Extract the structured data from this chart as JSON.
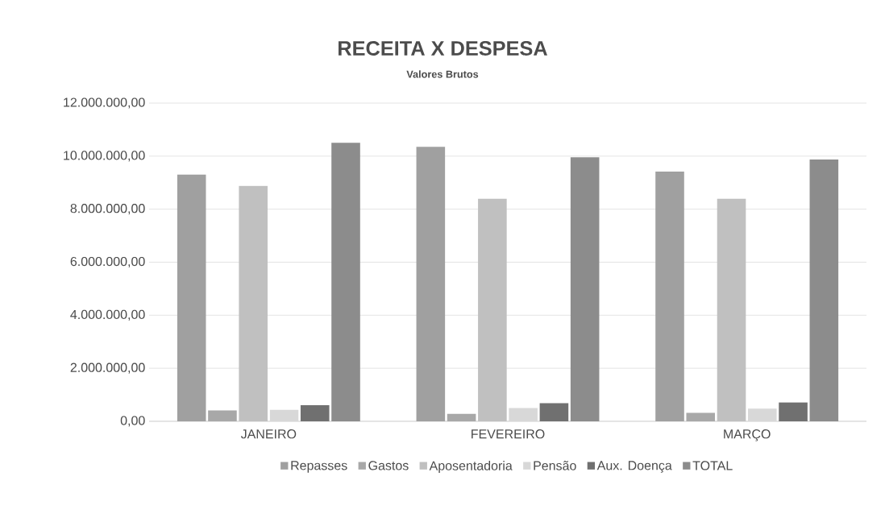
{
  "chart_data": {
    "type": "bar",
    "title": "RECEITA X DESPESA",
    "subtitle": "Valores Brutos",
    "categories": [
      "JANEIRO",
      "FEVEREIRO",
      "MARÇO"
    ],
    "series": [
      {
        "name": "Repasses",
        "color": "#a0a0a0",
        "values": [
          9300000,
          10350000,
          9420000
        ]
      },
      {
        "name": "Gastos",
        "color": "#a8a8a8",
        "values": [
          410000,
          280000,
          320000
        ]
      },
      {
        "name": "Aposentadoria",
        "color": "#c0c0c0",
        "values": [
          8880000,
          8390000,
          8390000
        ]
      },
      {
        "name": "Pensão",
        "color": "#d8d8d8",
        "values": [
          430000,
          500000,
          480000
        ]
      },
      {
        "name": "Aux. Doença",
        "color": "#707070",
        "values": [
          610000,
          680000,
          710000
        ]
      },
      {
        "name": "TOTAL",
        "color": "#8c8c8c",
        "values": [
          10500000,
          9960000,
          9870000
        ]
      }
    ],
    "ylim": [
      0,
      12000000
    ],
    "yticks": [
      {
        "value": 0,
        "label": "0,00"
      },
      {
        "value": 2000000,
        "label": "2.000.000,00"
      },
      {
        "value": 4000000,
        "label": "4.000.000,00"
      },
      {
        "value": 6000000,
        "label": "6.000.000,00"
      },
      {
        "value": 8000000,
        "label": "8.000.000,00"
      },
      {
        "value": 10000000,
        "label": "10.000.000,00"
      },
      {
        "value": 12000000,
        "label": "12.000.000,00"
      }
    ],
    "grid": "y",
    "legend": "bottom"
  }
}
